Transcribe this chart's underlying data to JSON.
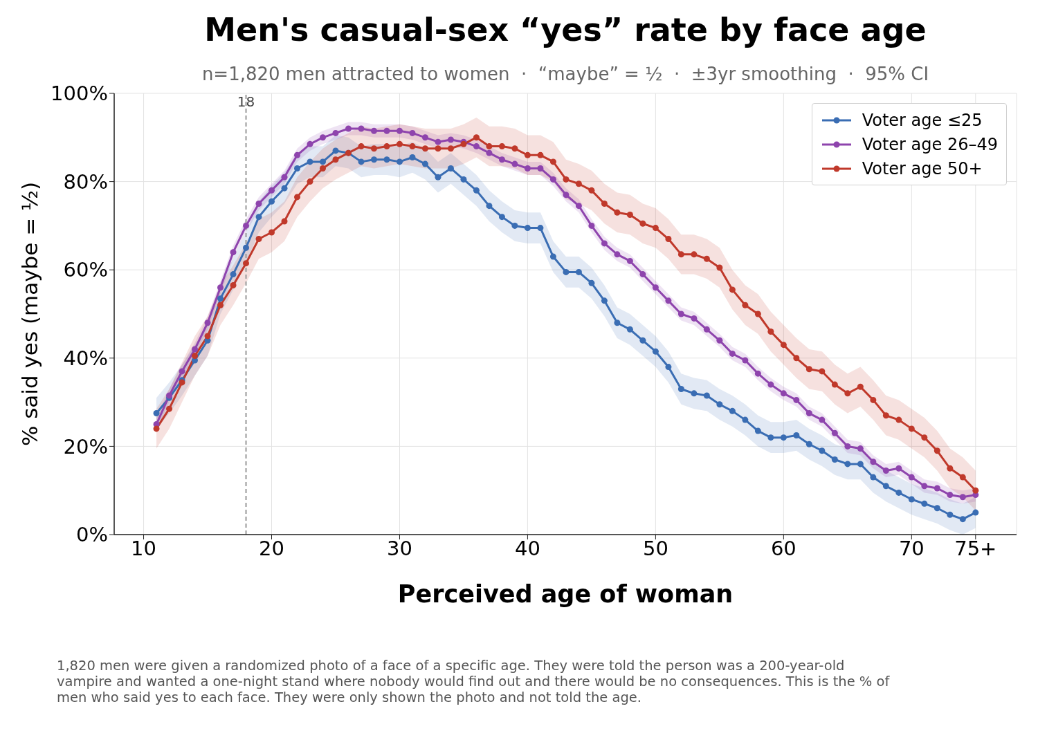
{
  "chart_data": {
    "type": "line",
    "title": "Men's casual-sex “yes” rate by face age",
    "subtitle": "n=1,820 men attracted to women  ·  “maybe” = ½  ·  ±3yr smoothing  ·  95% CI",
    "xlabel": "Perceived age of woman",
    "ylabel": "% said yes  (maybe = ½)",
    "x": [
      11,
      12,
      13,
      14,
      15,
      16,
      17,
      18,
      19,
      20,
      21,
      22,
      23,
      24,
      25,
      26,
      27,
      28,
      29,
      30,
      31,
      32,
      33,
      34,
      35,
      36,
      37,
      38,
      39,
      40,
      41,
      42,
      43,
      44,
      45,
      46,
      47,
      48,
      49,
      50,
      51,
      52,
      53,
      54,
      55,
      56,
      57,
      58,
      59,
      60,
      61,
      62,
      63,
      64,
      65,
      66,
      67,
      68,
      69,
      70,
      71,
      72,
      73,
      74,
      75
    ],
    "series": [
      {
        "name": "Voter age ≤25",
        "color": "#3a6db3",
        "values": [
          27.5,
          31,
          35,
          39.5,
          44,
          53.5,
          59,
          65,
          72,
          75.5,
          78.5,
          83,
          84.5,
          84.5,
          87,
          86.5,
          84.5,
          85,
          85,
          84.5,
          85.5,
          84,
          81,
          83,
          80.5,
          78,
          74.5,
          72,
          70,
          69.5,
          69.5,
          63,
          59.5,
          59.5,
          57,
          53,
          48,
          46.5,
          44,
          41.5,
          38,
          33,
          32,
          31.5,
          29.5,
          28,
          26,
          23.5,
          22,
          22,
          22.5,
          20.5,
          19,
          17,
          16,
          16,
          13,
          11,
          9.5,
          8,
          7,
          6,
          4.5,
          3.5,
          5
        ],
        "lower": [
          24,
          27.5,
          31.5,
          36,
          40.5,
          50,
          55.5,
          61.5,
          68.5,
          72,
          75,
          79.5,
          81,
          81,
          83.5,
          83,
          81,
          81.5,
          81.5,
          81,
          82,
          80.5,
          77.5,
          79.5,
          77,
          74.5,
          71,
          68.5,
          66.5,
          66,
          66,
          59.5,
          56,
          56,
          53.5,
          49.5,
          44.5,
          43,
          40.5,
          38,
          34.5,
          29.5,
          28.5,
          28,
          26,
          24.5,
          22.5,
          20,
          18.5,
          18.5,
          19,
          17,
          15.5,
          13.5,
          12.5,
          12.5,
          9.5,
          7.5,
          6,
          4.5,
          3.5,
          2.5,
          1,
          0,
          1.5
        ],
        "upper": [
          31,
          34.5,
          38.5,
          43,
          47.5,
          57,
          62.5,
          68.5,
          75.5,
          79,
          82,
          86.5,
          88,
          88,
          90.5,
          90,
          88,
          88.5,
          88.5,
          88,
          89,
          87.5,
          84.5,
          86.5,
          84,
          81.5,
          78,
          75.5,
          73.5,
          73,
          73,
          66.5,
          63,
          63,
          60.5,
          56.5,
          51.5,
          50,
          47.5,
          45,
          41.5,
          36.5,
          35.5,
          35,
          33,
          31.5,
          29.5,
          27,
          25.5,
          25.5,
          26,
          24,
          22.5,
          20.5,
          19.5,
          19.5,
          16.5,
          14.5,
          13,
          11.5,
          10.5,
          9.5,
          8,
          7,
          8.5
        ]
      },
      {
        "name": "Voter age 26–49",
        "color": "#8e44ad",
        "values": [
          25,
          31.5,
          37,
          42,
          48,
          56,
          64,
          70,
          75,
          78,
          81,
          86,
          88.5,
          90,
          91,
          92,
          92,
          91.5,
          91.5,
          91.5,
          91,
          90,
          89,
          89.5,
          89,
          88,
          86.5,
          85,
          84,
          83,
          83,
          80.5,
          77,
          74.5,
          70,
          66,
          63.5,
          62,
          59,
          56,
          53,
          50,
          49,
          46.5,
          44,
          41,
          39.5,
          36.5,
          34,
          32,
          30.5,
          27.5,
          26,
          23,
          20,
          19.5,
          16.5,
          14.5,
          15,
          13,
          11,
          10.5,
          9,
          8.5,
          9
        ],
        "lower": [
          23.5,
          30,
          35.5,
          40.5,
          46.5,
          54.5,
          62.5,
          68.5,
          73.5,
          76.5,
          79.5,
          84.5,
          87,
          88.5,
          89.5,
          90.5,
          90.5,
          90,
          90,
          90,
          89.5,
          88.5,
          87.5,
          88,
          87.5,
          86.5,
          85,
          83.5,
          82.5,
          81.5,
          81.5,
          79,
          75.5,
          73,
          68.5,
          64.5,
          62,
          60.5,
          57.5,
          54.5,
          51.5,
          48.5,
          47.5,
          45,
          42.5,
          39.5,
          38,
          35,
          32.5,
          30.5,
          29,
          26,
          24.5,
          21.5,
          18.5,
          18,
          15,
          13,
          13.5,
          11.5,
          9.5,
          9,
          7.5,
          7,
          7.5
        ],
        "upper": [
          26.5,
          33,
          38.5,
          43.5,
          49.5,
          57.5,
          65.5,
          71.5,
          76.5,
          79.5,
          82.5,
          87.5,
          90,
          91.5,
          92.5,
          93.5,
          93.5,
          93,
          93,
          93,
          92.5,
          91.5,
          90.5,
          91,
          90.5,
          89.5,
          88,
          86.5,
          85.5,
          84.5,
          84.5,
          82,
          78.5,
          76,
          71.5,
          67.5,
          65,
          63.5,
          60.5,
          57.5,
          54.5,
          51.5,
          50.5,
          48,
          45.5,
          42.5,
          41,
          38,
          35.5,
          33.5,
          32,
          29,
          27.5,
          24.5,
          21.5,
          21,
          18,
          16,
          16.5,
          14.5,
          12.5,
          12,
          10.5,
          10,
          10.5
        ]
      },
      {
        "name": "Voter age 50+",
        "color": "#c0392b",
        "values": [
          24,
          28.5,
          34.5,
          40.5,
          45,
          52,
          56.5,
          61.5,
          67,
          68.5,
          71,
          76.5,
          80,
          83,
          85,
          86.5,
          88,
          87.5,
          88,
          88.5,
          88,
          87.5,
          87.5,
          87.5,
          88.5,
          90,
          88,
          88,
          87.5,
          86,
          86,
          84.5,
          80.5,
          79.5,
          78,
          75,
          73,
          72.5,
          70.5,
          69.5,
          67,
          63.5,
          63.5,
          62.5,
          60.5,
          55.5,
          52,
          50,
          46,
          43,
          40,
          37.5,
          37,
          34,
          32,
          33.5,
          30.5,
          27,
          26,
          24,
          22,
          19,
          15,
          13,
          10
        ],
        "lower": [
          19.5,
          24,
          30,
          36,
          40.5,
          47.5,
          52,
          57,
          62.5,
          64,
          66.5,
          72,
          75.5,
          78.5,
          80.5,
          82,
          83.5,
          83,
          83.5,
          84,
          83.5,
          83,
          83,
          83,
          84,
          85.5,
          83.5,
          83.5,
          83,
          81.5,
          81.5,
          80,
          76,
          75,
          73.5,
          70.5,
          68.5,
          68,
          66,
          65,
          62.5,
          59,
          59,
          58,
          56,
          51,
          47.5,
          45.5,
          41.5,
          38.5,
          35.5,
          33,
          32.5,
          29.5,
          27.5,
          29,
          26,
          22.5,
          21.5,
          19.5,
          17.5,
          14.5,
          10.5,
          8.5,
          5.5
        ],
        "upper": [
          28.5,
          33,
          39,
          45,
          49.5,
          56.5,
          61,
          66,
          71.5,
          73,
          75.5,
          81,
          84.5,
          87.5,
          89.5,
          91,
          92.5,
          92,
          92.5,
          93,
          92.5,
          92,
          92,
          92,
          93,
          94.5,
          92.5,
          92.5,
          92,
          90.5,
          90.5,
          89,
          85,
          84,
          82.5,
          79.5,
          77.5,
          77,
          75,
          74,
          71.5,
          68,
          68,
          67,
          65,
          60,
          56.5,
          54.5,
          50.5,
          47.5,
          44.5,
          42,
          41.5,
          38.5,
          36.5,
          38,
          35,
          31.5,
          30.5,
          28.5,
          26.5,
          23.5,
          19.5,
          17.5,
          14.5
        ]
      }
    ],
    "xlim": [
      7.7,
      78.2
    ],
    "xticks": [
      10,
      20,
      30,
      40,
      50,
      60,
      70,
      {
        "value": 75,
        "label": "75+"
      }
    ],
    "ylim": [
      0,
      100
    ],
    "yticks": [
      {
        "value": 0,
        "label": "0%"
      },
      {
        "value": 20,
        "label": "20%"
      },
      {
        "value": 40,
        "label": "40%"
      },
      {
        "value": 60,
        "label": "60%"
      },
      {
        "value": 80,
        "label": "80%"
      },
      {
        "value": 100,
        "label": "100%"
      }
    ],
    "ref_lines": [
      {
        "axis": "x",
        "value": 18,
        "label": "18",
        "color": "#999999",
        "line_style": "dashed"
      }
    ],
    "annotations": [
      "1,820 men were given a randomized photo of a face of a specific age. They were told the person was a 200-year-old vampire and wanted a one-night stand where nobody would find out and there would be no consequences. This is the % of men who said yes to each face. They were only shown the photo and not told the age."
    ],
    "grid": true,
    "legend": "top right",
    "marker": "circle",
    "line_style": "solid"
  }
}
